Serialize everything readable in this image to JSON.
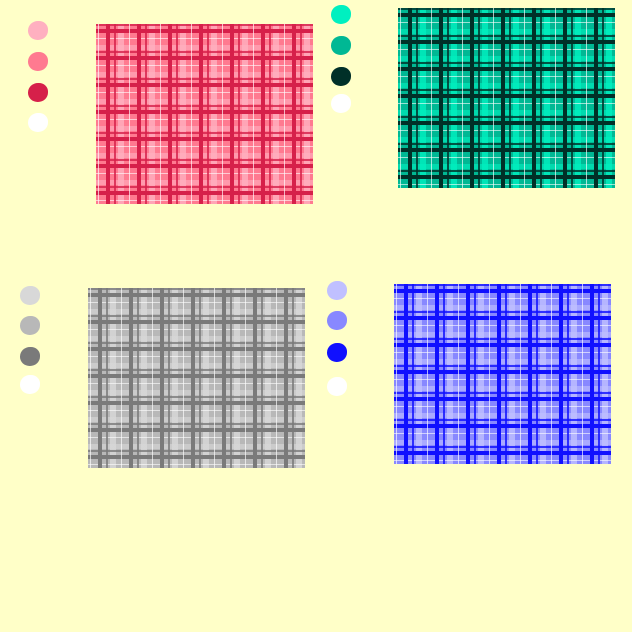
{
  "palettes": [
    {
      "name": "red",
      "colors": [
        "#ffb0c0",
        "#ff7a90",
        "#d6204a",
        "#ffffff"
      ]
    },
    {
      "name": "teal",
      "colors": [
        "#00f0c0",
        "#00b894",
        "#003028",
        "#ffffff"
      ]
    },
    {
      "name": "gray",
      "colors": [
        "#d8d8d8",
        "#b8b8b8",
        "#7a7a7a",
        "#ffffff"
      ]
    },
    {
      "name": "blue",
      "colors": [
        "#c0c0ff",
        "#8888ff",
        "#1010ff",
        "#ffffff"
      ]
    }
  ]
}
